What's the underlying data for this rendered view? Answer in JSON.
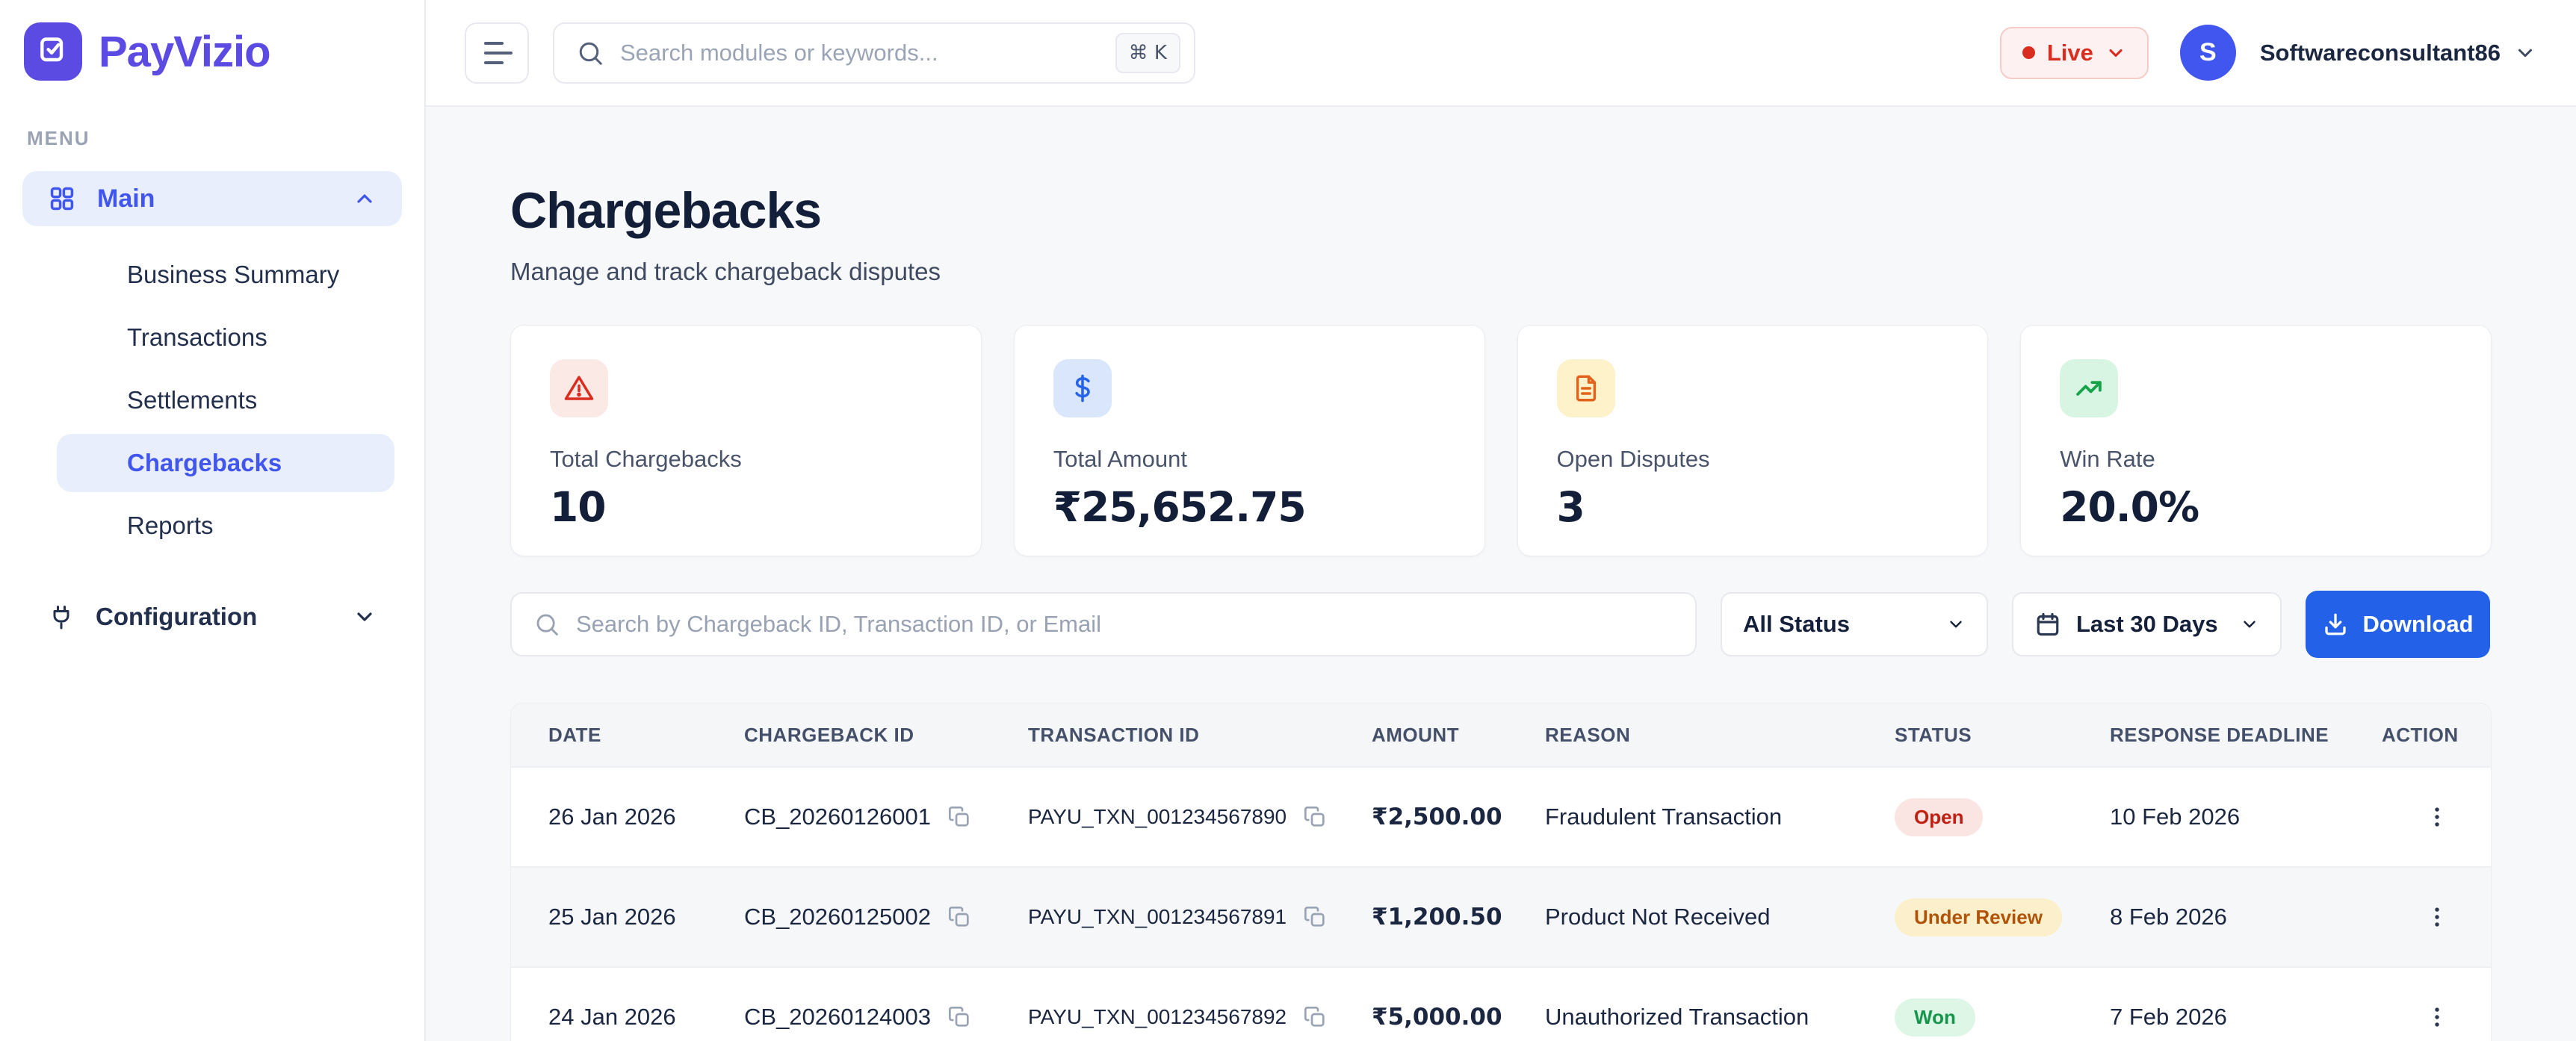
{
  "brand": {
    "name": "PayVizio",
    "color": "#5b4be2"
  },
  "topbar": {
    "search_placeholder": "Search modules or keywords...",
    "shortcut": "⌘ K",
    "live_label": "Live",
    "user_initial": "S",
    "username": "Softwareconsultant86"
  },
  "sidebar": {
    "menu_label": "MENU",
    "main_group_label": "Main",
    "items": [
      {
        "label": "Business Summary",
        "active": false
      },
      {
        "label": "Transactions",
        "active": false
      },
      {
        "label": "Settlements",
        "active": false
      },
      {
        "label": "Chargebacks",
        "active": true
      },
      {
        "label": "Reports",
        "active": false
      }
    ],
    "configuration_label": "Configuration"
  },
  "page": {
    "title": "Chargebacks",
    "subtitle": "Manage and track chargeback disputes"
  },
  "stats": [
    {
      "label": "Total Chargebacks",
      "value": "10",
      "icon": "warning-icon",
      "icon_color": "#d92d20",
      "icon_bg": "#fbe9e5"
    },
    {
      "label": "Total Amount",
      "value": "₹25,652.75",
      "icon": "dollar-icon",
      "icon_color": "#2563eb",
      "icon_bg": "#d9e6fc"
    },
    {
      "label": "Open Disputes",
      "value": "3",
      "icon": "document-icon",
      "icon_color": "#e2641c",
      "icon_bg": "#fdf2ca"
    },
    {
      "label": "Win Rate",
      "value": "20.0%",
      "icon": "trend-up-icon",
      "icon_color": "#16a34a",
      "icon_bg": "#d8f5e3"
    }
  ],
  "filters": {
    "search_placeholder": "Search by Chargeback ID, Transaction ID, or Email",
    "status_filter": "All Status",
    "date_filter": "Last 30 Days",
    "download_label": "Download",
    "download_color": "#2361e8"
  },
  "table": {
    "headers": [
      "Date",
      "Chargeback ID",
      "Transaction ID",
      "Amount",
      "Reason",
      "Status",
      "Response Deadline",
      "Action"
    ],
    "status_styles": {
      "Open": {
        "bg": "#fbe5e3",
        "fg": "#c01f12"
      },
      "Under Review": {
        "bg": "#fcf0cc",
        "fg": "#b05309"
      },
      "Won": {
        "bg": "#def6e5",
        "fg": "#17954c"
      }
    },
    "rows": [
      {
        "date": "26 Jan 2026",
        "chargeback_id": "CB_20260126001",
        "transaction_id": "PAYU_TXN_001234567890",
        "amount": "₹2,500.00",
        "reason": "Fraudulent Transaction",
        "status": "Open",
        "deadline": "10 Feb 2026"
      },
      {
        "date": "25 Jan 2026",
        "chargeback_id": "CB_20260125002",
        "transaction_id": "PAYU_TXN_001234567891",
        "amount": "₹1,200.50",
        "reason": "Product Not Received",
        "status": "Under Review",
        "deadline": "8 Feb 2026"
      },
      {
        "date": "24 Jan 2026",
        "chargeback_id": "CB_20260124003",
        "transaction_id": "PAYU_TXN_001234567892",
        "amount": "₹5,000.00",
        "reason": "Unauthorized Transaction",
        "status": "Won",
        "deadline": "7 Feb 2026"
      }
    ]
  }
}
